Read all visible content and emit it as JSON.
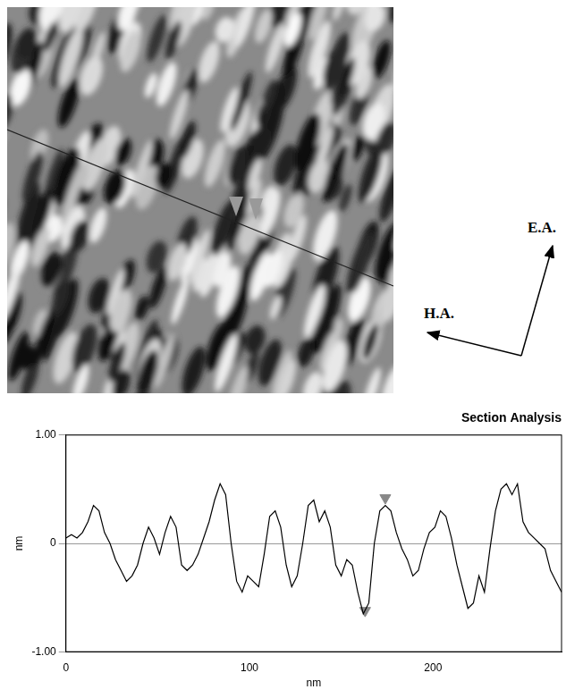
{
  "chart_data": {
    "type": "line",
    "title": "Section Analysis",
    "x_label": "nm",
    "y_label": "nm",
    "annotations": [
      "E.A.",
      "H.A."
    ],
    "x": [
      0,
      3,
      6,
      9,
      12,
      15,
      18,
      21,
      24,
      27,
      30,
      33,
      36,
      39,
      42,
      45,
      48,
      51,
      54,
      57,
      60,
      63,
      66,
      69,
      72,
      75,
      78,
      81,
      84,
      87,
      90,
      93,
      96,
      99,
      102,
      105,
      108,
      111,
      114,
      117,
      120,
      123,
      126,
      129,
      132,
      135,
      138,
      141,
      144,
      147,
      150,
      153,
      156,
      159,
      162,
      165,
      168,
      171,
      174,
      177,
      180,
      183,
      186,
      189,
      192,
      195,
      198,
      201,
      204,
      207,
      210,
      213,
      216,
      219,
      222,
      225,
      228,
      231,
      234,
      237,
      240,
      243,
      246,
      249,
      252,
      255,
      258,
      261,
      264,
      267,
      270
    ],
    "values": [
      0.05,
      0.08,
      0.05,
      0.1,
      0.2,
      0.35,
      0.3,
      0.1,
      0.0,
      -0.15,
      -0.25,
      -0.35,
      -0.3,
      -0.2,
      0.0,
      0.15,
      0.05,
      -0.1,
      0.1,
      0.25,
      0.15,
      -0.2,
      -0.25,
      -0.2,
      -0.1,
      0.05,
      0.2,
      0.4,
      0.55,
      0.45,
      0.0,
      -0.35,
      -0.45,
      -0.3,
      -0.35,
      -0.4,
      -0.1,
      0.25,
      0.3,
      0.15,
      -0.2,
      -0.4,
      -0.3,
      0.0,
      0.35,
      0.4,
      0.2,
      0.3,
      0.15,
      -0.2,
      -0.3,
      -0.15,
      -0.2,
      -0.45,
      -0.65,
      -0.55,
      0.0,
      0.3,
      0.35,
      0.3,
      0.1,
      -0.05,
      -0.15,
      -0.3,
      -0.25,
      -0.05,
      0.1,
      0.15,
      0.3,
      0.25,
      0.05,
      -0.2,
      -0.4,
      -0.6,
      -0.55,
      -0.3,
      -0.45,
      -0.05,
      0.3,
      0.5,
      0.55,
      0.45,
      0.55,
      0.2,
      0.1,
      0.05,
      0.0,
      -0.05,
      -0.25,
      -0.35,
      -0.45
    ],
    "color": "#000000",
    "cursors": {
      "x": [
        163,
        174
      ],
      "y": [
        -0.62,
        0.42
      ],
      "color": "#888888"
    },
    "xlim": [
      0,
      270
    ],
    "xticks": [
      0,
      100,
      200
    ],
    "ylim": [
      -1,
      1
    ],
    "yticks": [
      {
        "value": -1,
        "label": "-1.00"
      },
      0,
      {
        "value": 1,
        "label": "1.00"
      }
    ],
    "grid": true
  }
}
